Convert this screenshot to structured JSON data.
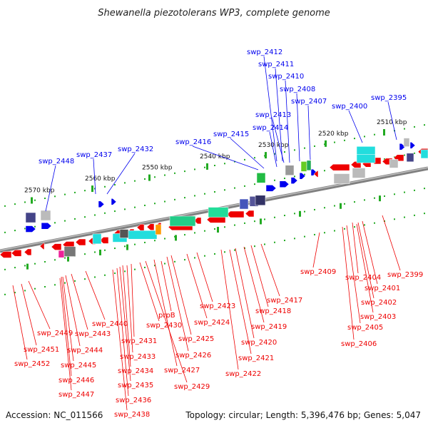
{
  "title": "Shewanella piezotolerans WP3, complete genome",
  "footer": {
    "accession": "Accession: NC_011566",
    "summary": "Topology: circular; Length: 5,396,476 bp; Genes: 5,047"
  },
  "colors": {
    "forward": "#0000ee",
    "reverse": "#ee0000",
    "axis": "#808080",
    "ticks": "#22aa22"
  },
  "scale_ticks": [
    "2510 kbp",
    "2520 kbp",
    "2530 kbp",
    "2540 kbp",
    "2550 kbp",
    "2560 kbp",
    "2570 kbp"
  ],
  "forward_labels": [
    "swp_2412",
    "swp_2411",
    "swp_2410",
    "swp_2408",
    "swp_2407",
    "swp_2400",
    "swp_2395",
    "swp_2413",
    "swp_2414",
    "swp_2415",
    "swp_2416",
    "swp_2432",
    "swp_2437",
    "swp_2448"
  ],
  "reverse_labels": [
    "swp_2409",
    "swp_2399",
    "swp_2404",
    "swp_2401",
    "swp_2402",
    "swp_2403",
    "swp_2405",
    "swp_2406",
    "swp_2417",
    "swp_2418",
    "swp_2419",
    "swp_2420",
    "swp_2421",
    "swp_2422",
    "swp_2423",
    "swp_2424",
    "swp_2425",
    "swp_2426",
    "swp_2427",
    "swp_2429",
    "prpB",
    "swp_2430",
    "swp_2431",
    "swp_2433",
    "swp_2434",
    "swp_2435",
    "swp_2436",
    "swp_2438",
    "swp_2440",
    "swp_2443",
    "swp_2444",
    "swp_2445",
    "swp_2446",
    "swp_2447",
    "swp_2449",
    "swp_2451",
    "swp_2452"
  ]
}
